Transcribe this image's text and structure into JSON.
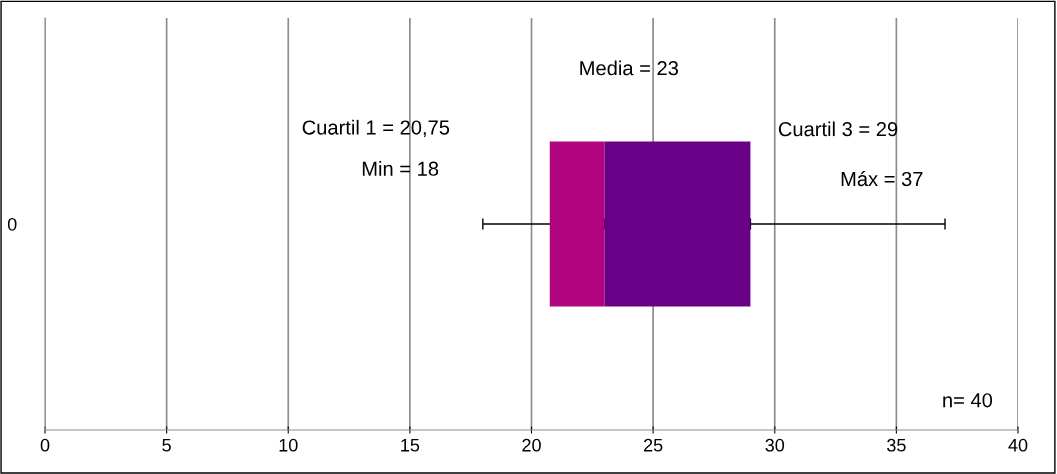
{
  "chart_data": {
    "type": "bar",
    "orientation": "horizontal",
    "categories": [
      "0"
    ],
    "series": [
      {
        "color": "#b1047f",
        "base": [
          20.75
        ],
        "values": [
          2.25
        ],
        "errors": [
          [
            18,
            23
          ]
        ]
      },
      {
        "color": "#6a0088",
        "base": [
          23
        ],
        "values": [
          6
        ],
        "errors": [
          [
            29,
            37
          ]
        ]
      }
    ],
    "xlim": [
      0,
      40
    ],
    "xticks": [
      0,
      5,
      10,
      15,
      20,
      25,
      30,
      35,
      40
    ],
    "grid": "x",
    "annotations": [
      "Media = 23",
      "Cuartil 1 = 20,75",
      "Min = 18",
      "Cuartil 3 = 29",
      "Máx = 37",
      "n= 40"
    ]
  }
}
